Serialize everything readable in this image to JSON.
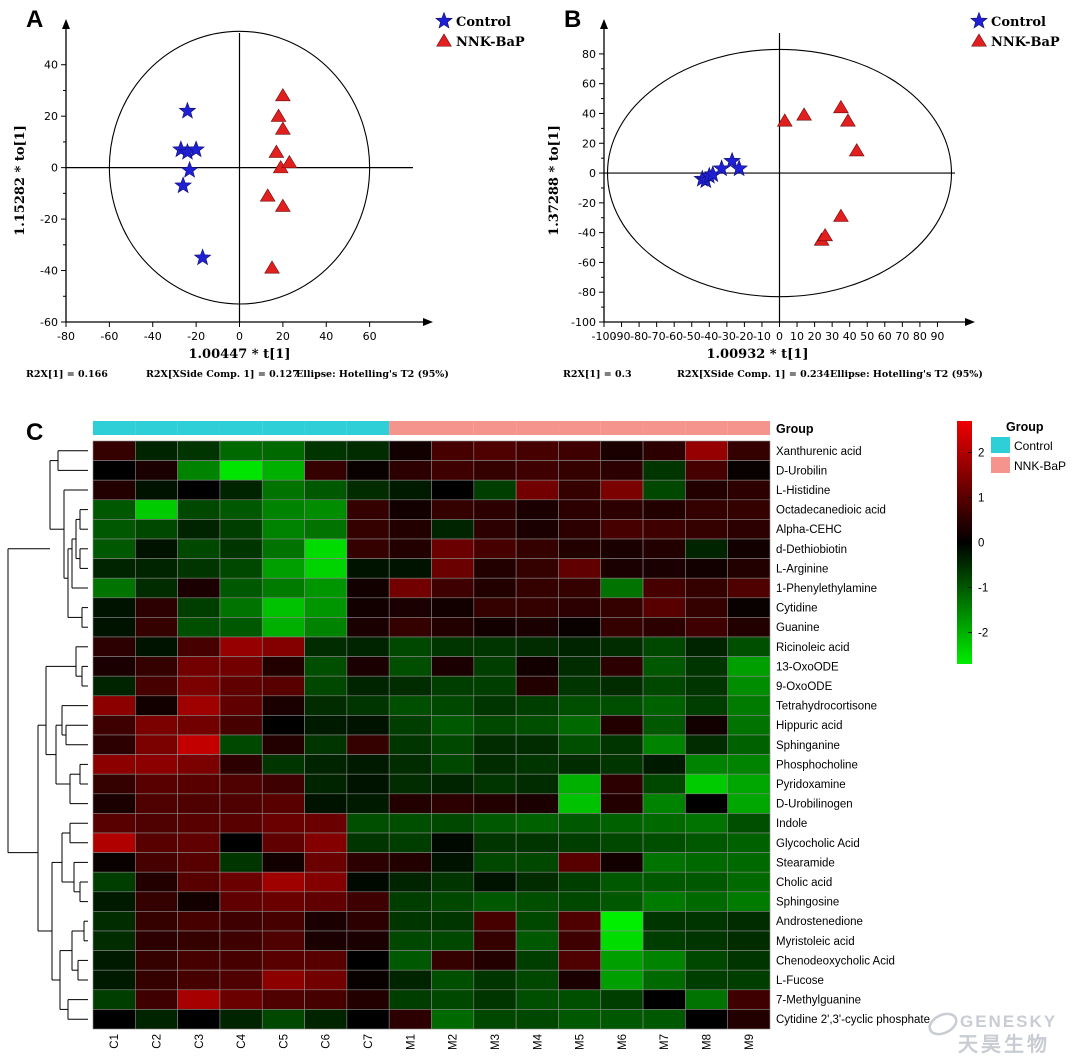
{
  "chart_data": [
    {
      "panel": "A",
      "type": "scatter",
      "xlabel": "1.00447 * t[1]",
      "ylabel": "1.15282 * to[1]",
      "xlim": [
        -80,
        80
      ],
      "ylim": [
        -60,
        50
      ],
      "xticks": [
        -80,
        -60,
        -40,
        -20,
        0,
        20,
        40,
        60
      ],
      "yticks": [
        -60,
        -40,
        -20,
        0,
        20,
        40
      ],
      "ellipse": {
        "rx": 60,
        "ry": 53
      },
      "series": [
        {
          "name": "Control",
          "marker": "star",
          "color": "#1f1fd6",
          "points": [
            [
              -24,
              22
            ],
            [
              -27,
              7
            ],
            [
              -24,
              6
            ],
            [
              -20,
              7
            ],
            [
              -23,
              -1
            ],
            [
              -26,
              -7
            ],
            [
              -17,
              -35
            ]
          ]
        },
        {
          "name": "NNK-BaP",
          "marker": "triangle",
          "color": "#e21f1f",
          "points": [
            [
              20,
              28
            ],
            [
              18,
              20
            ],
            [
              20,
              15
            ],
            [
              17,
              6
            ],
            [
              19,
              0
            ],
            [
              23,
              2
            ],
            [
              13,
              -11
            ],
            [
              20,
              -15
            ],
            [
              15,
              -39
            ]
          ]
        }
      ],
      "stats": [
        "R2X[1] = 0.166",
        "R2X[XSide Comp. 1] = 0.127",
        "Ellipse: Hotelling's T2 (95%)"
      ]
    },
    {
      "panel": "B",
      "type": "scatter",
      "xlabel": "1.00932 * t[1]",
      "ylabel": "1.37288 * to[1]",
      "xlim": [
        -100,
        100
      ],
      "ylim": [
        -100,
        90
      ],
      "xticks": [
        -100,
        -90,
        -80,
        -70,
        -60,
        -50,
        -40,
        -30,
        -20,
        -10,
        0,
        10,
        20,
        30,
        40,
        50,
        60,
        70,
        80,
        90
      ],
      "yticks": [
        -100,
        -80,
        -60,
        -40,
        -20,
        0,
        20,
        40,
        60,
        80
      ],
      "ellipse": {
        "rx": 98,
        "ry": 83
      },
      "series": [
        {
          "name": "Control",
          "marker": "star",
          "color": "#1f1fd6",
          "points": [
            [
              -44,
              -4
            ],
            [
              -42,
              -5
            ],
            [
              -40,
              -2
            ],
            [
              -38,
              -1
            ],
            [
              -33,
              3
            ],
            [
              -27,
              8
            ],
            [
              -23,
              3
            ]
          ]
        },
        {
          "name": "NNK-BaP",
          "marker": "triangle",
          "color": "#e21f1f",
          "points": [
            [
              3,
              35
            ],
            [
              14,
              39
            ],
            [
              35,
              44
            ],
            [
              39,
              35
            ],
            [
              44,
              15
            ],
            [
              35,
              -29
            ],
            [
              24,
              -45
            ],
            [
              26,
              -42
            ]
          ]
        }
      ],
      "stats": [
        "R2X[1] = 0.3",
        "R2X[XSide Comp. 1] = 0.234",
        "Ellipse: Hotelling's T2 (95%)"
      ]
    },
    {
      "panel": "C",
      "type": "heatmap",
      "group_label": "Group",
      "groups": [
        {
          "name": "Control",
          "color": "#2ecfd6"
        },
        {
          "name": "NNK-BaP",
          "color": "#f4948c"
        }
      ],
      "columns": [
        "C1",
        "C2",
        "C3",
        "C4",
        "C5",
        "C6",
        "C7",
        "M1",
        "M2",
        "M3",
        "M4",
        "M5",
        "M6",
        "M7",
        "M8",
        "M9"
      ],
      "column_groups": [
        0,
        0,
        0,
        0,
        0,
        0,
        0,
        1,
        1,
        1,
        1,
        1,
        1,
        1,
        1,
        1
      ],
      "color_scale": {
        "min": -2.7,
        "max": 2.7,
        "ticks": [
          2,
          1,
          0,
          -1,
          -2
        ],
        "low": "#00ee00",
        "mid": "#000000",
        "high": "#ee0000"
      },
      "rows": [
        "Xanthurenic acid",
        "D-Urobilin",
        "L-Histidine",
        "Octadecanedioic acid",
        "Alpha-CEHC",
        "d-Dethiobiotin",
        "L-Arginine",
        "1-Phenylethylamine",
        "Cytidine",
        "Guanine",
        "Ricinoleic acid",
        "13-OxoODE",
        "9-OxoODE",
        "Tetrahydrocortisone",
        "Hippuric acid",
        "Sphinganine",
        "Phosphocholine",
        "Pyridoxamine",
        "D-Urobilinogen",
        "Indole",
        "Glycocholic Acid",
        "Stearamide",
        "Cholic acid",
        "Sphingosine",
        "Androstenedione",
        "Myristoleic acid",
        "Chenodeoxycholic Acid",
        "L-Fucose",
        "7-Methylguanine",
        "Cytidine 2',3'-cyclic phosphate"
      ],
      "values": [
        [
          0.6,
          -0.4,
          -0.6,
          -1.2,
          -1.2,
          -0.6,
          -0.5,
          0.2,
          0.8,
          0.9,
          0.8,
          0.7,
          0.3,
          0.5,
          1.7,
          0.6
        ],
        [
          0.0,
          0.3,
          -1.5,
          -2.6,
          -2.0,
          0.6,
          0.1,
          0.5,
          0.7,
          0.6,
          0.7,
          0.6,
          0.5,
          -0.6,
          0.8,
          0.1
        ],
        [
          0.4,
          -0.2,
          0.0,
          -0.4,
          -1.3,
          -1.0,
          -0.5,
          -0.3,
          0.0,
          -0.7,
          1.3,
          0.6,
          1.4,
          -0.8,
          0.4,
          0.5
        ],
        [
          -1.0,
          -2.3,
          -0.8,
          -1.0,
          -1.5,
          -1.6,
          0.6,
          0.2,
          0.6,
          0.5,
          0.3,
          0.5,
          0.5,
          0.4,
          0.6,
          0.6
        ],
        [
          -1.0,
          -0.8,
          -0.4,
          -0.7,
          -1.5,
          -1.3,
          0.6,
          0.4,
          -0.4,
          0.5,
          0.3,
          0.5,
          0.8,
          0.7,
          0.6,
          0.5
        ],
        [
          -1.0,
          -0.2,
          -0.8,
          -0.6,
          -1.3,
          -2.5,
          0.6,
          0.4,
          1.2,
          0.8,
          0.6,
          0.4,
          0.3,
          0.4,
          -0.4,
          0.2
        ],
        [
          -0.4,
          -0.4,
          -0.6,
          -0.8,
          -1.8,
          -2.4,
          -0.2,
          -0.2,
          1.2,
          0.4,
          0.6,
          1.1,
          0.3,
          0.3,
          0.2,
          0.4
        ],
        [
          -1.3,
          -0.5,
          0.3,
          -1.0,
          -1.4,
          -1.7,
          0.2,
          1.3,
          0.7,
          0.4,
          0.6,
          0.6,
          -1.3,
          0.8,
          0.6,
          0.9
        ],
        [
          -0.2,
          0.5,
          -0.7,
          -1.3,
          -2.2,
          -1.7,
          0.2,
          0.3,
          0.2,
          0.6,
          0.6,
          0.5,
          0.6,
          1.0,
          0.6,
          0.1
        ],
        [
          -0.2,
          0.6,
          -0.9,
          -1.0,
          -2.0,
          -1.5,
          0.3,
          0.6,
          0.4,
          0.2,
          0.3,
          0.1,
          0.6,
          0.5,
          0.7,
          0.4
        ],
        [
          0.5,
          -0.2,
          0.8,
          1.7,
          1.5,
          -0.5,
          -0.4,
          -0.8,
          -0.6,
          -0.6,
          -0.5,
          -0.4,
          -0.5,
          -0.8,
          -0.4,
          -0.9
        ],
        [
          0.3,
          0.6,
          1.3,
          1.3,
          0.4,
          -0.9,
          0.3,
          -0.9,
          0.3,
          -0.7,
          0.2,
          -0.5,
          0.5,
          -1.0,
          -0.6,
          -1.8
        ],
        [
          -0.4,
          0.8,
          1.4,
          1.1,
          1.0,
          -0.8,
          -0.4,
          -0.5,
          -0.7,
          -0.7,
          0.4,
          -0.6,
          -0.5,
          -0.8,
          -0.6,
          -1.6
        ],
        [
          1.6,
          0.2,
          1.8,
          1.1,
          0.3,
          -0.5,
          -0.6,
          -0.9,
          -0.8,
          -0.6,
          -0.7,
          -0.9,
          -0.9,
          -1.1,
          -0.7,
          -1.4
        ],
        [
          0.7,
          1.4,
          1.3,
          0.8,
          0.0,
          -0.3,
          -0.2,
          -0.7,
          -1.0,
          -0.8,
          -0.9,
          -1.2,
          0.4,
          -1.0,
          0.2,
          -1.3
        ],
        [
          0.5,
          1.4,
          2.2,
          -0.8,
          0.4,
          -0.6,
          0.6,
          -0.6,
          -0.8,
          -0.5,
          -0.5,
          -0.9,
          -0.6,
          -1.5,
          -0.5,
          -1.1
        ],
        [
          1.6,
          1.6,
          1.4,
          0.5,
          -0.6,
          -0.4,
          -0.3,
          -0.5,
          -0.8,
          -0.5,
          -0.6,
          -0.5,
          -0.6,
          -0.3,
          -1.5,
          -1.5
        ],
        [
          0.6,
          1.0,
          1.0,
          0.9,
          0.7,
          -0.4,
          -0.2,
          -0.5,
          -0.4,
          -0.6,
          -0.5,
          -2.0,
          0.5,
          -0.8,
          -2.3,
          -1.9
        ],
        [
          0.3,
          0.9,
          0.9,
          0.9,
          1.0,
          -0.2,
          -0.3,
          0.4,
          0.5,
          0.4,
          0.3,
          -2.2,
          0.4,
          -1.5,
          0.0,
          -1.9
        ],
        [
          1.0,
          0.9,
          1.0,
          1.0,
          1.2,
          1.2,
          -0.9,
          -0.9,
          -0.8,
          -1.0,
          -1.1,
          -1.0,
          -1.1,
          -1.2,
          -1.3,
          -0.9
        ],
        [
          2.0,
          1.0,
          1.1,
          0.0,
          1.1,
          1.5,
          -0.6,
          -0.7,
          -0.1,
          -0.6,
          -0.6,
          -0.7,
          -0.8,
          -0.9,
          -1.0,
          -1.1
        ],
        [
          0.1,
          0.8,
          1.0,
          -0.6,
          0.2,
          1.2,
          0.5,
          0.4,
          -0.2,
          -0.8,
          -0.8,
          1.0,
          0.2,
          -1.3,
          -1.2,
          -1.2
        ],
        [
          -0.7,
          0.4,
          1.0,
          1.2,
          1.8,
          1.5,
          -0.1,
          -0.4,
          -0.6,
          -0.2,
          -0.5,
          -0.7,
          -1.0,
          -1.0,
          -1.0,
          -1.2
        ],
        [
          -0.3,
          0.6,
          0.2,
          1.1,
          1.2,
          1.1,
          0.7,
          -0.7,
          -0.8,
          -1.0,
          -0.9,
          -0.8,
          -1.0,
          -1.4,
          -1.2,
          -1.4
        ],
        [
          -0.5,
          0.6,
          0.8,
          0.7,
          0.8,
          0.3,
          0.5,
          -0.6,
          -0.6,
          0.8,
          -0.8,
          0.9,
          -2.7,
          -0.6,
          -0.6,
          -0.5
        ],
        [
          -0.5,
          0.5,
          0.6,
          0.7,
          0.9,
          0.3,
          0.3,
          -0.8,
          -0.8,
          0.6,
          -1.0,
          0.7,
          -2.5,
          -0.7,
          -0.6,
          -0.5
        ],
        [
          -0.3,
          0.6,
          0.8,
          0.8,
          1.0,
          1.0,
          0.0,
          -1.0,
          0.6,
          0.4,
          -0.7,
          0.9,
          -1.8,
          -1.5,
          -0.8,
          -0.6
        ],
        [
          -0.3,
          0.6,
          0.8,
          0.9,
          1.6,
          1.3,
          0.1,
          -0.4,
          -0.9,
          -0.6,
          -0.8,
          0.3,
          -1.8,
          -1.2,
          -0.7,
          -0.7
        ],
        [
          -0.7,
          0.7,
          1.9,
          1.2,
          0.9,
          0.8,
          0.4,
          -0.7,
          -0.8,
          -0.6,
          -0.9,
          -0.9,
          -0.7,
          0.0,
          -1.3,
          0.7
        ],
        [
          0.0,
          -0.4,
          0.0,
          -0.4,
          -0.8,
          -0.4,
          0.0,
          0.5,
          -1.2,
          -0.8,
          -0.8,
          -1.0,
          -1.0,
          -1.0,
          0.0,
          0.4
        ]
      ]
    }
  ],
  "watermark": {
    "line1": "GENESKY",
    "line2": "天昊生物"
  }
}
